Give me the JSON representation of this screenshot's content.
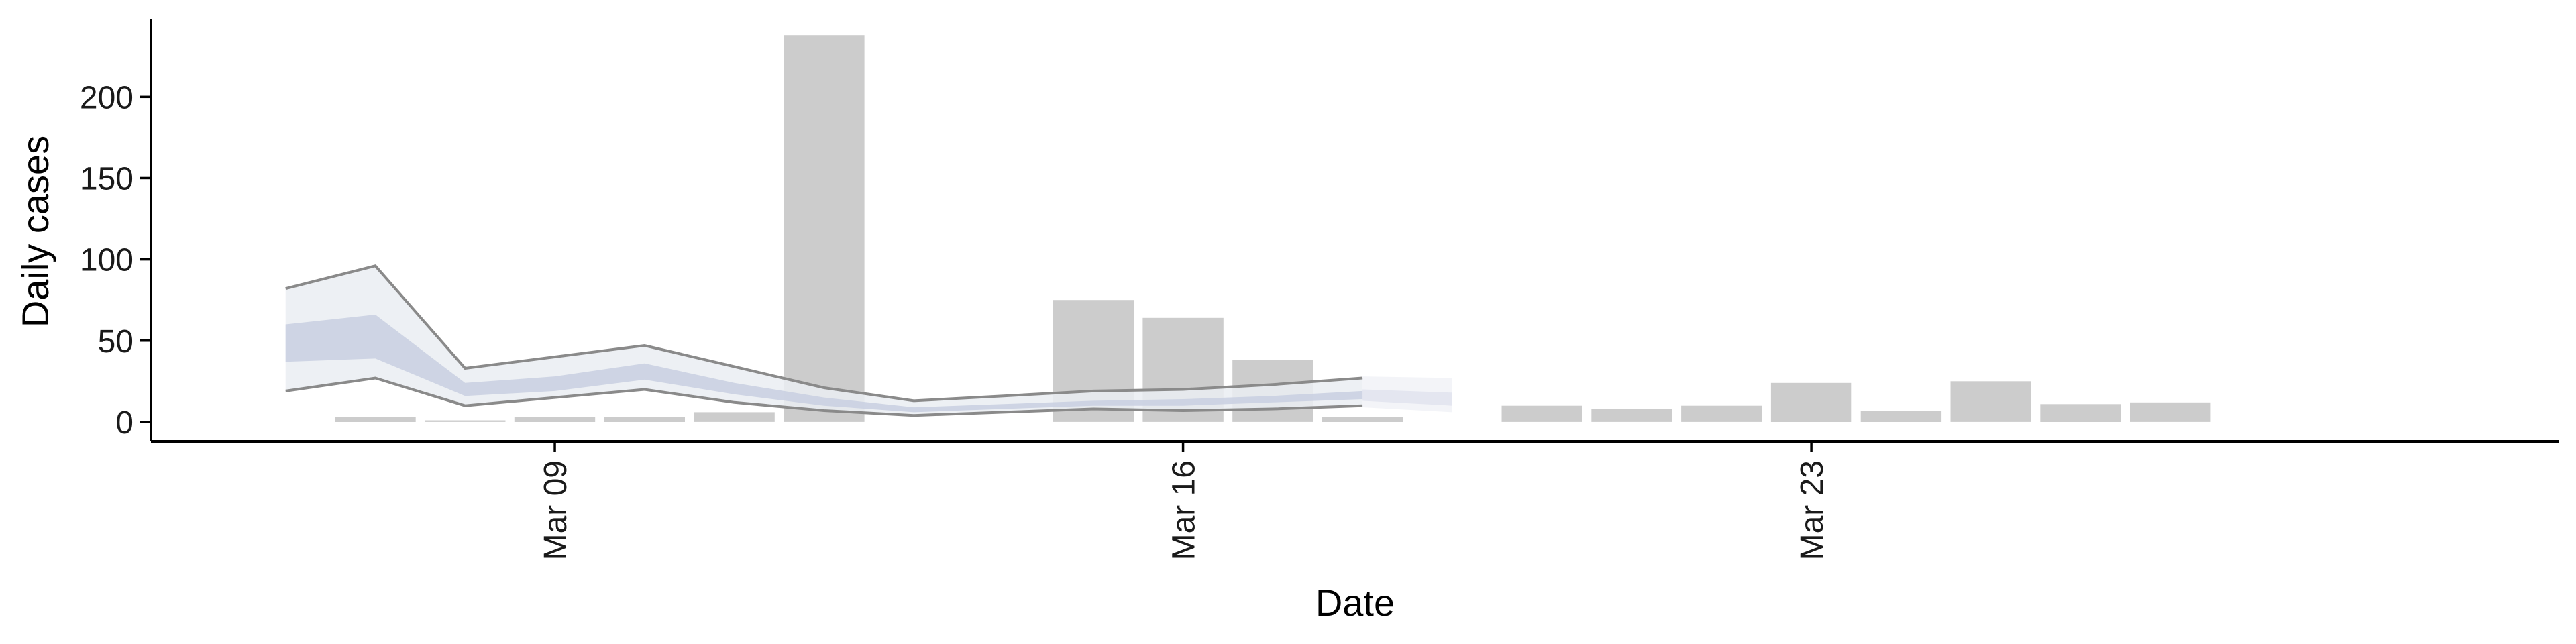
{
  "chart_data": {
    "type": "bar",
    "xlabel": "Date",
    "ylabel": "Daily cases",
    "ylim": [
      -12,
      248
    ],
    "yticks": [
      0,
      50,
      100,
      150,
      200
    ],
    "x_ticks": [
      "2020-03-09",
      "2020-03-16",
      "2020-03-23"
    ],
    "x_tick_labels": [
      "Mar 09",
      "Mar 16",
      "Mar 23"
    ],
    "xlim": [
      "2020-03-04 12:00",
      "2020-03-31 08:00"
    ],
    "grid": false,
    "bars": [
      {
        "date": "2020-03-07",
        "value": 3
      },
      {
        "date": "2020-03-08",
        "value": 1
      },
      {
        "date": "2020-03-09",
        "value": 3
      },
      {
        "date": "2020-03-10",
        "value": 3
      },
      {
        "date": "2020-03-11",
        "value": 6
      },
      {
        "date": "2020-03-12",
        "value": 238
      },
      {
        "date": "2020-03-15",
        "value": 75
      },
      {
        "date": "2020-03-16",
        "value": 64
      },
      {
        "date": "2020-03-17",
        "value": 38
      },
      {
        "date": "2020-03-18",
        "value": 3
      },
      {
        "date": "2020-03-20",
        "value": 10
      },
      {
        "date": "2020-03-21",
        "value": 8
      },
      {
        "date": "2020-03-22",
        "value": 10
      },
      {
        "date": "2020-03-23",
        "value": 24
      },
      {
        "date": "2020-03-24",
        "value": 7
      },
      {
        "date": "2020-03-25",
        "value": 25
      },
      {
        "date": "2020-03-26",
        "value": 11
      },
      {
        "date": "2020-03-27",
        "value": 12
      }
    ],
    "estimate": {
      "x": [
        "2020-03-06",
        "2020-03-07",
        "2020-03-08",
        "2020-03-09",
        "2020-03-10",
        "2020-03-11",
        "2020-03-12",
        "2020-03-13",
        "2020-03-14",
        "2020-03-15",
        "2020-03-16",
        "2020-03-17",
        "2020-03-18"
      ],
      "outer_upper": [
        82,
        96,
        33,
        40,
        47,
        34,
        21,
        13,
        16,
        19,
        20,
        23,
        27
      ],
      "outer_lower": [
        19,
        27,
        10,
        15,
        20,
        12,
        7,
        4,
        6,
        8,
        7,
        8,
        10
      ],
      "inner_upper": [
        60,
        66,
        24,
        28,
        36,
        24,
        15,
        9,
        11,
        13,
        14,
        16,
        19
      ],
      "inner_lower": [
        37,
        39,
        16,
        19,
        26,
        17,
        10,
        6,
        8,
        10,
        10,
        12,
        14
      ],
      "outer_color": "#eaedf2",
      "inner_color": "#c8cfe1",
      "line_color": "#8a8a8a"
    },
    "forecast": {
      "x": [
        "2020-03-18",
        "2020-03-19"
      ],
      "outer_upper": [
        28,
        27
      ],
      "outer_lower": [
        9,
        6
      ],
      "inner_upper": [
        20,
        18
      ],
      "inner_lower": [
        13,
        10
      ],
      "outer_color": "#f1f2f7",
      "inner_color": "#e0e3ee"
    },
    "bar_color": "#cccccc"
  }
}
